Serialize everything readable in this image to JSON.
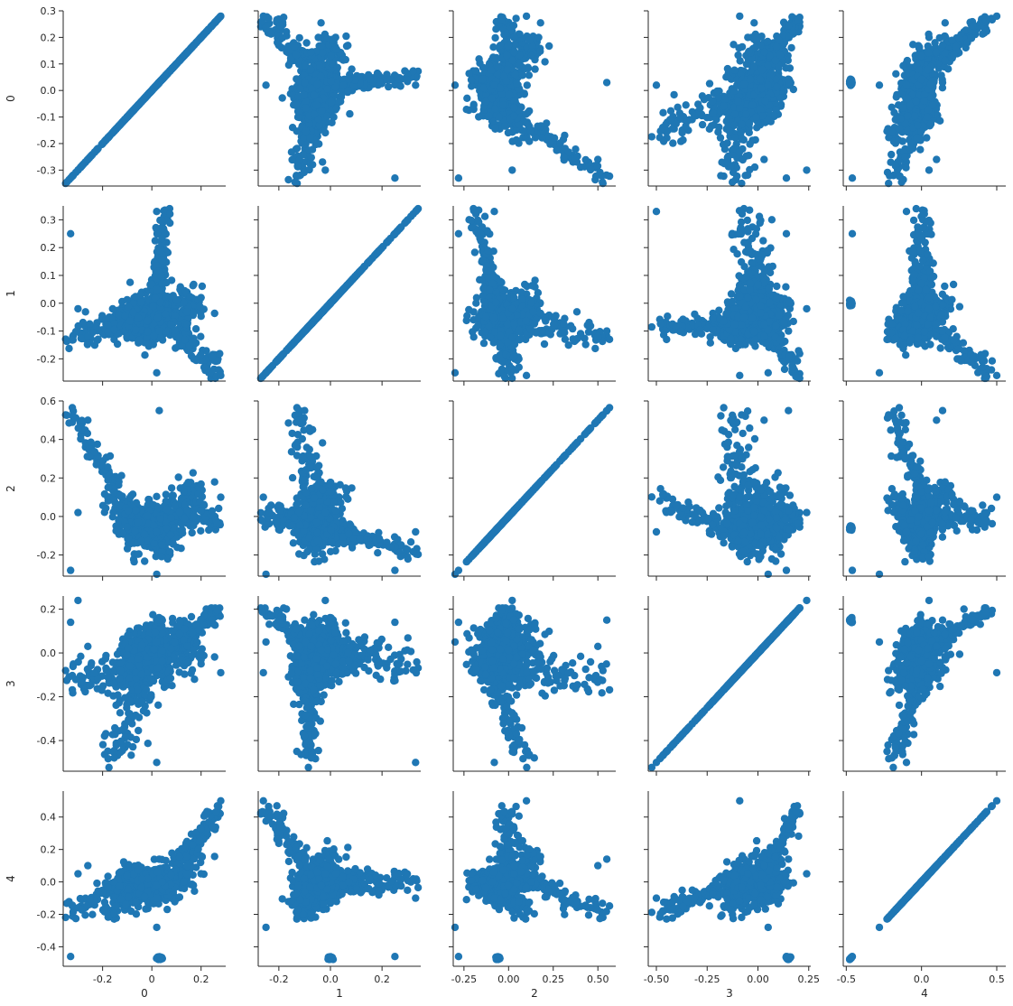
{
  "chart_data": {
    "type": "scatter",
    "kind": "pairplot",
    "variables": [
      "0",
      "1",
      "2",
      "3",
      "4"
    ],
    "point_color": "#1f77b4",
    "grid": false,
    "ranges": [
      [
        -0.36,
        0.3
      ],
      [
        -0.28,
        0.35
      ],
      [
        -0.31,
        0.6
      ],
      [
        -0.54,
        0.26
      ],
      [
        -0.52,
        0.56
      ]
    ],
    "ticks": [
      [
        -0.3,
        -0.2,
        -0.1,
        0.0,
        0.1,
        0.2,
        0.3
      ],
      [
        -0.2,
        -0.1,
        0.0,
        0.1,
        0.2,
        0.3
      ],
      [
        -0.2,
        0.0,
        0.2,
        0.4,
        0.6
      ],
      [
        -0.4,
        -0.2,
        0.0,
        0.2
      ],
      [
        -0.4,
        -0.2,
        0.0,
        0.2,
        0.4
      ]
    ],
    "y_tick_labels": [
      [
        "-0.3",
        "-0.2",
        "-0.1",
        "0.0",
        "0.1",
        "0.2",
        "0.3"
      ],
      [
        "-0.2",
        "-0.1",
        "0.0",
        "0.1",
        "0.2",
        "0.3"
      ],
      [
        "-0.2",
        "0.0",
        "0.2",
        "0.4",
        "0.6"
      ],
      [
        "-0.4",
        "-0.2",
        "0.0",
        "0.2"
      ],
      [
        "-0.4",
        "-0.2",
        "0.0",
        "0.2",
        "0.4"
      ]
    ],
    "x_ticks": [
      [
        -0.2,
        0.0,
        0.2
      ],
      [
        -0.2,
        0.0,
        0.2
      ],
      [
        -0.25,
        0.0,
        0.25,
        0.5
      ],
      [
        -0.5,
        -0.25,
        0.0,
        0.25
      ],
      [
        -0.5,
        0.0,
        0.5
      ]
    ],
    "x_tick_labels": [
      [
        "-0.2",
        "0",
        "0.2"
      ],
      [
        "-0.2",
        "0.0",
        "0.2"
      ],
      [
        "-0.25",
        "0.00",
        "0.25",
        "0.50"
      ],
      [
        "-0.50",
        "-0.25",
        "0.00",
        "0.25"
      ],
      [
        "-0.5",
        "0.0",
        "0.5"
      ]
    ],
    "point_count": 1000,
    "sample_points": [
      [
        -0.33,
        0.25,
        -0.28,
        0.14,
        -0.46
      ],
      [
        0.28,
        -0.26,
        0.1,
        -0.09,
        0.5
      ],
      [
        0.03,
        -0.1,
        0.55,
        0.15,
        0.14
      ],
      [
        -0.3,
        -0.02,
        0.02,
        0.24,
        0.05
      ],
      [
        0.02,
        0.33,
        -0.08,
        -0.5,
        -0.1
      ],
      [
        -0.26,
        -0.12,
        0.5,
        0.03,
        0.1
      ],
      [
        0.02,
        -0.25,
        -0.3,
        0.05,
        -0.28
      ],
      [
        0.2,
        0.02,
        0.03,
        -0.05,
        0.05
      ]
    ]
  }
}
